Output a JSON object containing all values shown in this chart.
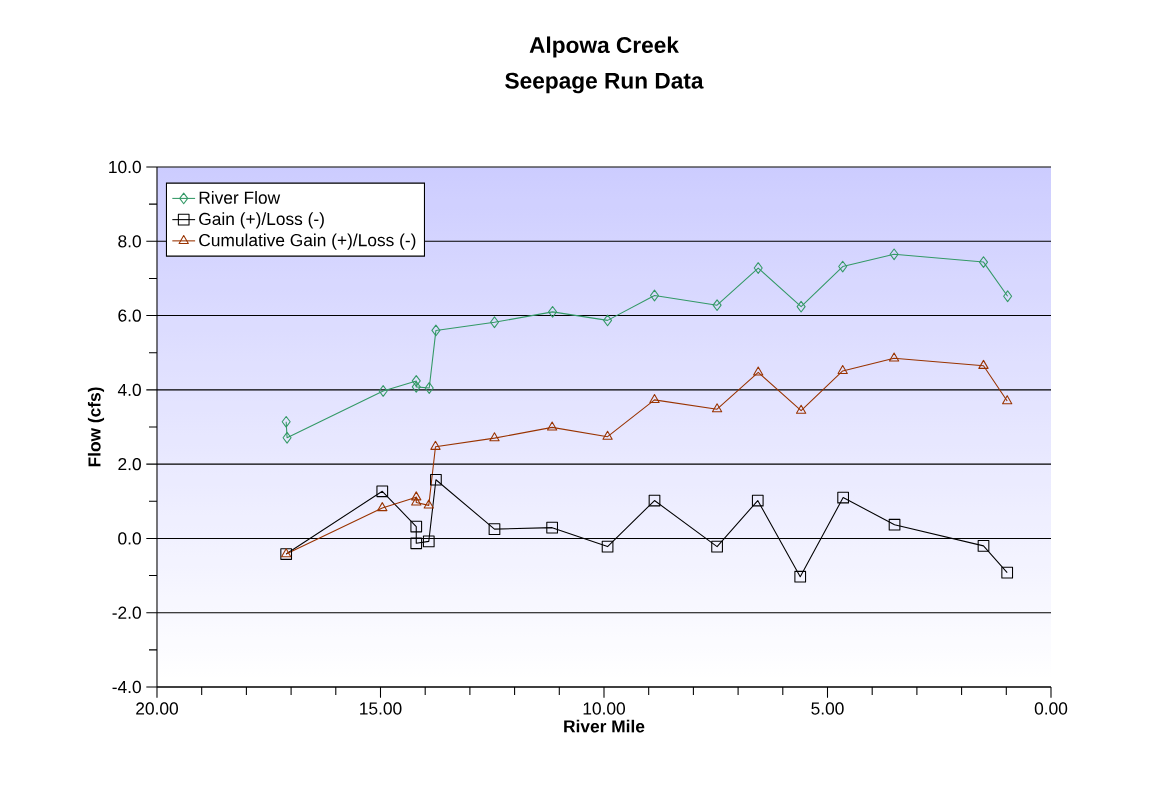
{
  "chart_data": {
    "type": "line",
    "title": "Alpowa Creek",
    "subtitle": "Seepage Run Data",
    "xlabel": "River Mile",
    "ylabel": "Flow (cfs)",
    "xlim": [
      20,
      0
    ],
    "ylim": [
      -4,
      10
    ],
    "xticks": [
      {
        "value": 20,
        "label": "20.00"
      },
      {
        "value": 15,
        "label": "15.00"
      },
      {
        "value": 10,
        "label": "10.00"
      },
      {
        "value": 5,
        "label": "5.00"
      },
      {
        "value": 0,
        "label": "0.00"
      }
    ],
    "yticks": [
      {
        "value": -4,
        "label": "-4.0"
      },
      {
        "value": -2,
        "label": "-2.0"
      },
      {
        "value": 0,
        "label": "0.0"
      },
      {
        "value": 2,
        "label": "2.0"
      },
      {
        "value": 4,
        "label": "4.0"
      },
      {
        "value": 6,
        "label": "6.0"
      },
      {
        "value": 8,
        "label": "8.0"
      },
      {
        "value": 10,
        "label": "10.0"
      }
    ],
    "grid": "y",
    "legend": "top left",
    "line_style": "solid",
    "series": [
      {
        "name": "River Flow",
        "color": "#339966",
        "marker": "diamond",
        "x": [
          17.11,
          17.09,
          14.94,
          14.2,
          14.2,
          13.91,
          13.76,
          12.45,
          11.15,
          9.92,
          8.87,
          7.47,
          6.55,
          5.59,
          4.66,
          3.51,
          1.51,
          0.97
        ],
        "values": [
          3.14,
          2.71,
          3.97,
          4.24,
          4.08,
          4.05,
          5.6,
          5.82,
          6.1,
          5.87,
          6.54,
          6.28,
          7.28,
          6.24,
          7.32,
          7.65,
          7.44,
          6.52
        ]
      },
      {
        "name": "Gain (+)/Loss (-)",
        "color": "#000000",
        "marker": "square",
        "x": [
          17.11,
          14.96,
          14.2,
          14.2,
          13.92,
          13.76,
          12.45,
          11.16,
          9.92,
          8.87,
          7.47,
          6.56,
          5.61,
          4.65,
          3.5,
          1.51,
          0.98
        ],
        "values": [
          -0.42,
          1.27,
          0.32,
          -0.13,
          -0.08,
          1.58,
          0.25,
          0.29,
          -0.22,
          1.02,
          -0.22,
          1.02,
          -1.03,
          1.1,
          0.37,
          -0.2,
          -0.92
        ]
      },
      {
        "name": "Cumulative Gain (+)/Loss (-)",
        "color": "#993300",
        "marker": "triangle",
        "x": [
          17.11,
          14.96,
          14.2,
          14.2,
          13.92,
          13.77,
          12.45,
          11.16,
          9.92,
          8.87,
          7.47,
          6.55,
          5.59,
          4.66,
          3.51,
          1.51,
          0.98
        ],
        "values": [
          -0.42,
          0.82,
          1.11,
          0.97,
          0.89,
          2.47,
          2.7,
          2.99,
          2.74,
          3.73,
          3.48,
          4.47,
          3.44,
          4.51,
          4.85,
          4.65,
          3.7
        ]
      }
    ]
  }
}
